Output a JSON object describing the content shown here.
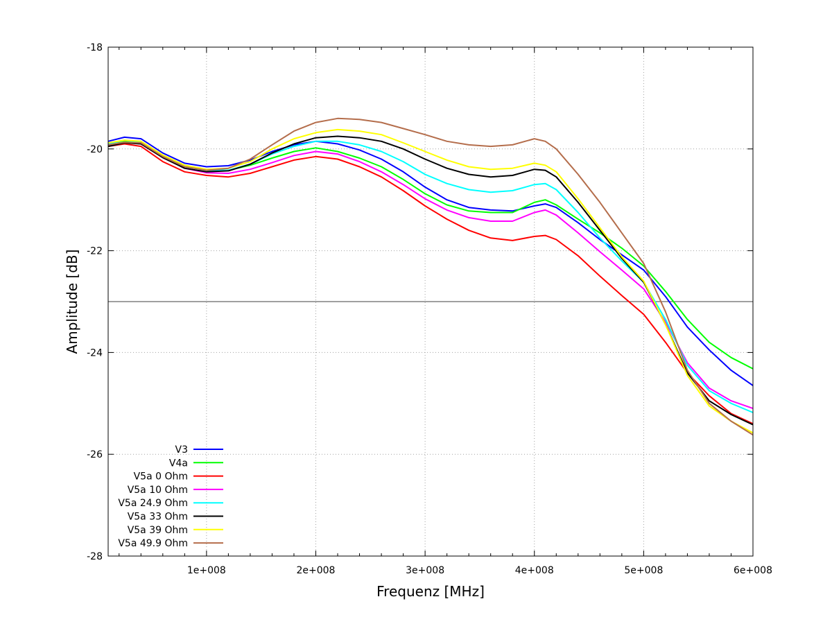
{
  "chart_data": {
    "type": "line",
    "title": "",
    "xlabel": "Frequenz [MHz]",
    "ylabel": "Amplitude [dB]",
    "xlim": [
      10000000,
      600000000
    ],
    "ylim": [
      -28,
      -18
    ],
    "x_ticks": [
      100000000,
      200000000,
      300000000,
      400000000,
      500000000,
      600000000
    ],
    "x_tick_labels": [
      "1e+008",
      "2e+008",
      "3e+008",
      "4e+008",
      "5e+008",
      "6e+008"
    ],
    "y_ticks": [
      -28,
      -26,
      -24,
      -22,
      -20,
      -18
    ],
    "y_tick_labels": [
      "-28",
      "-26",
      "-24",
      "-22",
      "-20",
      "-18"
    ],
    "reference_line_y": -23,
    "grid": true,
    "legend_position": "bottom-left",
    "x": [
      10000000,
      25000000,
      40000000,
      60000000,
      80000000,
      100000000,
      120000000,
      140000000,
      160000000,
      180000000,
      200000000,
      220000000,
      240000000,
      260000000,
      280000000,
      300000000,
      320000000,
      340000000,
      360000000,
      380000000,
      400000000,
      410000000,
      420000000,
      440000000,
      460000000,
      480000000,
      500000000,
      520000000,
      540000000,
      560000000,
      580000000,
      600000000
    ],
    "series": [
      {
        "name": "V3",
        "color": "#0000ff",
        "values": [
          -19.85,
          -19.77,
          -19.8,
          -20.08,
          -20.28,
          -20.35,
          -20.33,
          -20.22,
          -20.05,
          -19.92,
          -19.85,
          -19.9,
          -20.02,
          -20.2,
          -20.45,
          -20.75,
          -21.0,
          -21.15,
          -21.2,
          -21.22,
          -21.12,
          -21.08,
          -21.15,
          -21.45,
          -21.78,
          -22.08,
          -22.38,
          -22.9,
          -23.5,
          -23.95,
          -24.35,
          -24.65
        ]
      },
      {
        "name": "V4a",
        "color": "#00ff00",
        "values": [
          -19.92,
          -19.85,
          -19.87,
          -20.13,
          -20.32,
          -20.42,
          -20.42,
          -20.32,
          -20.18,
          -20.05,
          -19.98,
          -20.05,
          -20.18,
          -20.35,
          -20.6,
          -20.88,
          -21.1,
          -21.22,
          -21.25,
          -21.25,
          -21.05,
          -21.0,
          -21.1,
          -21.38,
          -21.65,
          -21.95,
          -22.3,
          -22.8,
          -23.35,
          -23.8,
          -24.1,
          -24.32
        ]
      },
      {
        "name": "V5a 0 Ohm",
        "color": "#ff0000",
        "values": [
          -19.95,
          -19.9,
          -19.95,
          -20.25,
          -20.45,
          -20.52,
          -20.55,
          -20.48,
          -20.35,
          -20.22,
          -20.15,
          -20.2,
          -20.35,
          -20.55,
          -20.82,
          -21.12,
          -21.38,
          -21.6,
          -21.75,
          -21.8,
          -21.72,
          -21.7,
          -21.78,
          -22.1,
          -22.5,
          -22.88,
          -23.25,
          -23.8,
          -24.4,
          -24.85,
          -25.2,
          -25.4
        ]
      },
      {
        "name": "V5a 10 Ohm",
        "color": "#ff00ff",
        "values": [
          -19.92,
          -19.87,
          -19.9,
          -20.17,
          -20.38,
          -20.47,
          -20.48,
          -20.4,
          -20.27,
          -20.13,
          -20.05,
          -20.1,
          -20.25,
          -20.45,
          -20.7,
          -20.98,
          -21.2,
          -21.35,
          -21.42,
          -21.42,
          -21.25,
          -21.2,
          -21.3,
          -21.65,
          -22.02,
          -22.38,
          -22.75,
          -23.4,
          -24.2,
          -24.7,
          -24.95,
          -25.1
        ]
      },
      {
        "name": "V5a 24.9 Ohm",
        "color": "#00ffff",
        "values": [
          -19.9,
          -19.83,
          -19.87,
          -20.15,
          -20.35,
          -20.42,
          -20.42,
          -20.3,
          -20.1,
          -19.95,
          -19.85,
          -19.85,
          -19.92,
          -20.05,
          -20.25,
          -20.5,
          -20.68,
          -20.8,
          -20.85,
          -20.82,
          -20.7,
          -20.68,
          -20.8,
          -21.25,
          -21.75,
          -22.2,
          -22.62,
          -23.35,
          -24.25,
          -24.75,
          -25.0,
          -25.18
        ]
      },
      {
        "name": "V5a 33 Ohm",
        "color": "#000000",
        "values": [
          -19.95,
          -19.88,
          -19.9,
          -20.17,
          -20.38,
          -20.45,
          -20.43,
          -20.3,
          -20.08,
          -19.9,
          -19.78,
          -19.75,
          -19.78,
          -19.85,
          -20.0,
          -20.2,
          -20.38,
          -20.5,
          -20.55,
          -20.52,
          -20.4,
          -20.42,
          -20.55,
          -21.05,
          -21.6,
          -22.15,
          -22.62,
          -23.45,
          -24.4,
          -24.95,
          -25.22,
          -25.42
        ]
      },
      {
        "name": "V5a 39 Ohm",
        "color": "#ffff00",
        "values": [
          -19.88,
          -19.83,
          -19.85,
          -20.12,
          -20.32,
          -20.4,
          -20.38,
          -20.25,
          -20.0,
          -19.8,
          -19.68,
          -19.62,
          -19.65,
          -19.72,
          -19.88,
          -20.05,
          -20.22,
          -20.35,
          -20.4,
          -20.38,
          -20.28,
          -20.32,
          -20.45,
          -20.98,
          -21.55,
          -22.12,
          -22.6,
          -23.45,
          -24.45,
          -25.05,
          -25.35,
          -25.58
        ]
      },
      {
        "name": "V5a 49.9 Ohm",
        "color": "#b46d4b",
        "values": [
          -19.92,
          -19.87,
          -19.88,
          -20.15,
          -20.35,
          -20.42,
          -20.38,
          -20.2,
          -19.92,
          -19.65,
          -19.48,
          -19.4,
          -19.42,
          -19.48,
          -19.6,
          -19.72,
          -19.85,
          -19.92,
          -19.95,
          -19.92,
          -19.8,
          -19.85,
          -20.0,
          -20.5,
          -21.05,
          -21.65,
          -22.25,
          -23.2,
          -24.35,
          -25.0,
          -25.35,
          -25.62
        ]
      }
    ]
  }
}
